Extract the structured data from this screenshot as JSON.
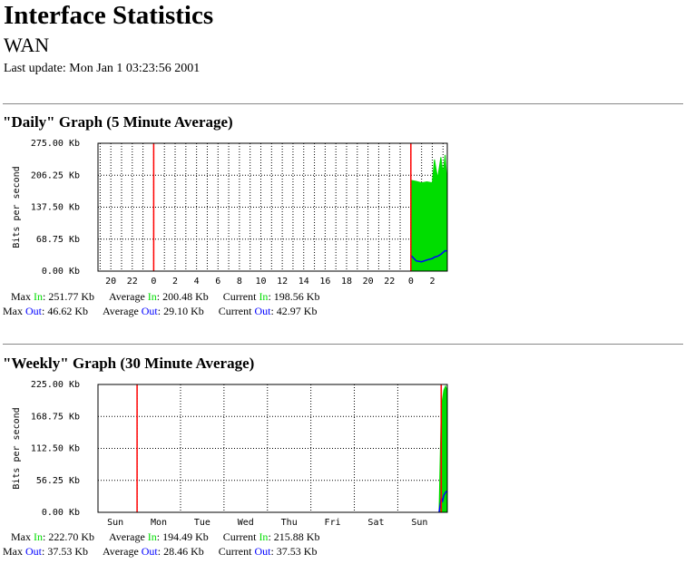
{
  "header": {
    "title": "Interface Statistics",
    "subtitle": "WAN",
    "updated": "Last update: Mon Jan 1 03:23:56 2001"
  },
  "chart_data": [
    {
      "type": "area",
      "title": "\"Daily\" Graph (5 Minute Average)",
      "ylabel": "Bits per second",
      "ylim": [
        0,
        275
      ],
      "yticks": [
        {
          "value": 0,
          "label": "0.00 Kb"
        },
        {
          "value": 68.75,
          "label": "68.75 Kb"
        },
        {
          "value": 137.5,
          "label": "137.50 Kb"
        },
        {
          "value": 206.25,
          "label": "206.25 Kb"
        },
        {
          "value": 275,
          "label": "275.00 Kb"
        }
      ],
      "xlim": [
        -29.2,
        3.4
      ],
      "xticks": [
        {
          "value": -28,
          "label": "20"
        },
        {
          "value": -26,
          "label": "22"
        },
        {
          "value": -24,
          "label": "0"
        },
        {
          "value": -22,
          "label": "2"
        },
        {
          "value": -20,
          "label": "4"
        },
        {
          "value": -18,
          "label": "6"
        },
        {
          "value": -16,
          "label": "8"
        },
        {
          "value": -14,
          "label": "10"
        },
        {
          "value": -12,
          "label": "12"
        },
        {
          "value": -10,
          "label": "14"
        },
        {
          "value": -8,
          "label": "16"
        },
        {
          "value": -6,
          "label": "18"
        },
        {
          "value": -4,
          "label": "20"
        },
        {
          "value": -2,
          "label": "22"
        },
        {
          "value": 0,
          "label": "0"
        },
        {
          "value": 2,
          "label": "2"
        }
      ],
      "xgrid": [
        -29,
        -28,
        -27,
        -26,
        -25,
        -24,
        -23,
        -22,
        -21,
        -20,
        -19,
        -18,
        -17,
        -16,
        -15,
        -14,
        -13,
        -12,
        -11,
        -10,
        -9,
        -8,
        -7,
        -6,
        -5,
        -4,
        -3,
        -2,
        -1,
        0,
        1,
        2,
        3
      ],
      "markers": [
        -24,
        0
      ],
      "marker_color": "#ff0000",
      "series": [
        {
          "color": "#00dd00",
          "x": [
            0.05,
            0.5,
            1,
            1.5,
            2,
            2.2,
            2.5,
            2.8,
            3,
            3.2,
            3.35
          ],
          "values": [
            195,
            193,
            190,
            192,
            190,
            240,
            200,
            245,
            210,
            250,
            199
          ]
        },
        {
          "color": "#0000ff",
          "x": [
            0.05,
            0.5,
            1,
            1.5,
            2,
            2.2,
            2.5,
            2.8,
            3,
            3.2,
            3.35
          ],
          "values": [
            33,
            22,
            20,
            24,
            27,
            30,
            32,
            36,
            40,
            44,
            43
          ]
        }
      ],
      "stats_sep": ":",
      "stats": [
        [
          {
            "label": "Max",
            "dir": "In",
            "value": "251.77 Kb"
          },
          {
            "label": "Average",
            "dir": "In",
            "value": "200.48 Kb"
          },
          {
            "label": "Current",
            "dir": "In",
            "value": "198.56 Kb"
          }
        ],
        [
          {
            "label": "Max",
            "dir": "Out",
            "value": "46.62 Kb"
          },
          {
            "label": "Average",
            "dir": "Out",
            "value": "29.10 Kb"
          },
          {
            "label": "Current",
            "dir": "Out",
            "value": "42.97 Kb"
          }
        ]
      ]
    },
    {
      "type": "area",
      "title": "\"Weekly\" Graph (30 Minute Average)",
      "ylabel": "Bits per second",
      "ylim": [
        0,
        225
      ],
      "yticks": [
        {
          "value": 0,
          "label": "0.00 Kb"
        },
        {
          "value": 56.25,
          "label": "56.25 Kb"
        },
        {
          "value": 112.5,
          "label": "112.50 Kb"
        },
        {
          "value": 168.75,
          "label": "168.75 Kb"
        },
        {
          "value": 225,
          "label": "225.00 Kb"
        }
      ],
      "xlim": [
        -7.9,
        0.14
      ],
      "xticks": [
        {
          "value": -7.5,
          "label": "Sun"
        },
        {
          "value": -6.5,
          "label": "Mon"
        },
        {
          "value": -5.5,
          "label": "Tue"
        },
        {
          "value": -4.5,
          "label": "Wed"
        },
        {
          "value": -3.5,
          "label": "Thu"
        },
        {
          "value": -2.5,
          "label": "Fri"
        },
        {
          "value": -1.5,
          "label": "Sat"
        },
        {
          "value": -0.5,
          "label": "Sun"
        }
      ],
      "xgrid": [
        -7,
        -6,
        -5,
        -4,
        -3,
        -2,
        -1,
        0
      ],
      "markers": [
        -7,
        0
      ],
      "marker_color": "#ff0000",
      "series": [
        {
          "color": "#00dd00",
          "x": [
            -0.05,
            0,
            0.03,
            0.06,
            0.1,
            0.13
          ],
          "values": [
            0,
            180,
            200,
            215,
            222,
            216
          ]
        },
        {
          "color": "#0000ff",
          "x": [
            -0.05,
            0,
            0.03,
            0.06,
            0.1,
            0.13
          ],
          "values": [
            0,
            25,
            20,
            30,
            35,
            37.5
          ]
        }
      ],
      "stats_sep": ":",
      "stats": [
        [
          {
            "label": "Max",
            "dir": "In",
            "value": "222.70 Kb"
          },
          {
            "label": "Average",
            "dir": "In",
            "value": "194.49 Kb"
          },
          {
            "label": "Current",
            "dir": "In",
            "value": "215.88 Kb"
          }
        ],
        [
          {
            "label": "Max",
            "dir": "Out",
            "value": "37.53 Kb"
          },
          {
            "label": "Average",
            "dir": "Out",
            "value": "28.46 Kb"
          },
          {
            "label": "Current",
            "dir": "Out",
            "value": "37.53 Kb"
          }
        ]
      ]
    }
  ]
}
